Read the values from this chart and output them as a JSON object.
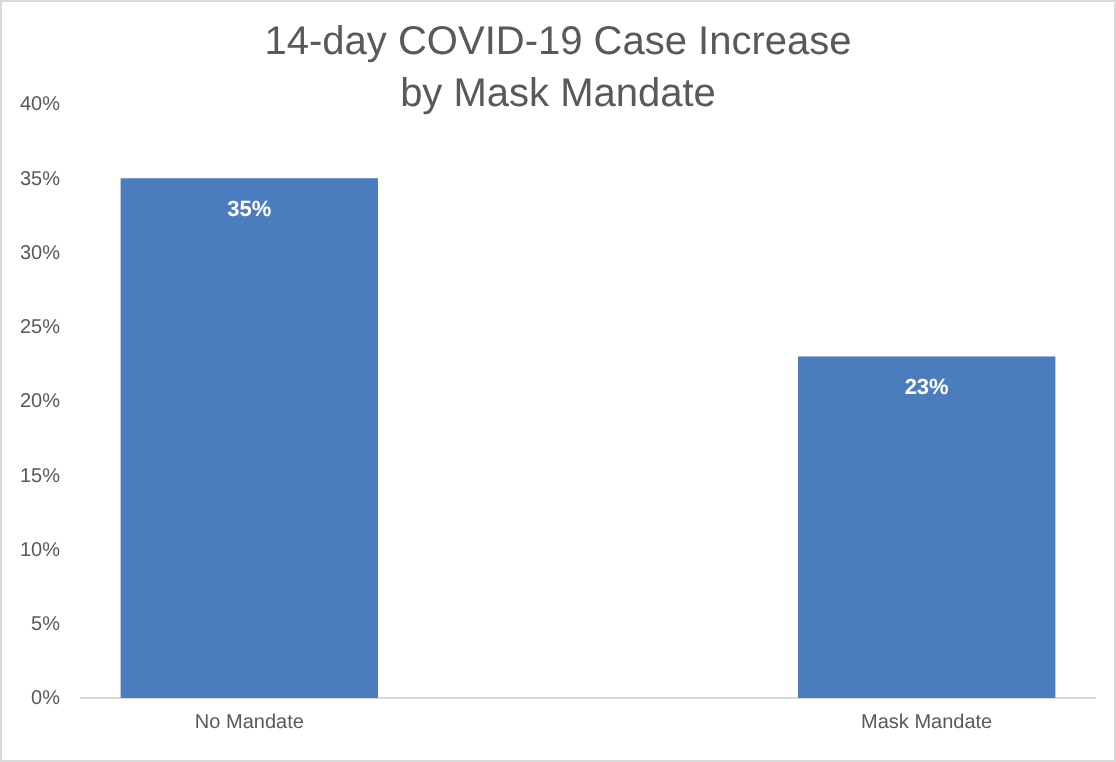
{
  "chart_data": {
    "type": "bar",
    "title": "14-day COVID-19 Case Increase\nby Mask Mandate",
    "categories": [
      "No Mandate",
      "Mask Mandate"
    ],
    "values": [
      35,
      23
    ],
    "color": "#4a7cbe",
    "value_labels": [
      "35%",
      "23%"
    ],
    "ylim": [
      0,
      40
    ],
    "yticks": [
      {
        "value": 0,
        "label": "0%"
      },
      {
        "value": 5,
        "label": "5%"
      },
      {
        "value": 10,
        "label": "10%"
      },
      {
        "value": 15,
        "label": "15%"
      },
      {
        "value": 20,
        "label": "20%"
      },
      {
        "value": 25,
        "label": "25%"
      },
      {
        "value": 30,
        "label": "30%"
      },
      {
        "value": 35,
        "label": "35%"
      },
      {
        "value": 40,
        "label": "40%"
      }
    ],
    "grid": false
  }
}
